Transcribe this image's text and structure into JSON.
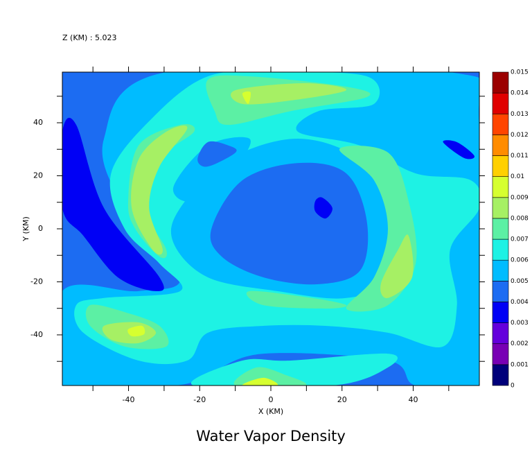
{
  "chart_data": {
    "type": "contourf",
    "title": "Water Vapor Density",
    "subtitle": "Z (KM) : 5.023",
    "x_label": "X (KM)",
    "y_label": "Y (KM)",
    "xlim": [
      -58.6,
      58.6
    ],
    "ylim": [
      -59.1,
      59.1
    ],
    "xticks": [
      -40,
      -20,
      0,
      20,
      40
    ],
    "yticks": [
      -40,
      -20,
      0,
      20,
      40
    ],
    "xminor_ticks": [
      -50,
      -30,
      -10,
      10,
      30,
      50
    ],
    "yminor_ticks": [
      -50,
      -30,
      -10,
      10,
      30,
      50
    ],
    "background_level": 0.004,
    "levels": [
      0,
      0.001,
      0.002,
      0.003,
      0.004,
      0.005,
      0.006,
      0.007,
      0.008,
      0.009,
      0.01,
      0.011,
      0.012,
      0.013,
      0.014,
      0.015
    ],
    "colors": [
      "#00007a",
      "#7800b4",
      "#6400dc",
      "#0000f5",
      "#1c6cf2",
      "#00bcff",
      "#1ef2e4",
      "#5cf0a4",
      "#a6f064",
      "#d6ff30",
      "#ffd000",
      "#ff8c00",
      "#ff4500",
      "#e00000",
      "#9b0000"
    ],
    "contours": [
      {
        "level": 0.005,
        "x": [
          -29.4,
          50.4,
          58.6,
          58.6,
          40.7,
          32.9,
          -2.1,
          -17.7,
          -27.4,
          -58.6,
          -58.6,
          -37.2,
          -25.5,
          -41.1,
          -46.9
        ],
        "y": [
          59.1,
          59.1,
          39.2,
          -59.1,
          -59.1,
          -49.7,
          -47.1,
          -54.9,
          -59.1,
          -59.1,
          -23.5,
          -23.5,
          -18.3,
          7.8,
          34.0
        ]
      },
      {
        "level": 0.003,
        "x": [
          -58.6,
          -54.7,
          -46.9,
          -31.3,
          -32.3,
          -43.0,
          -52.7,
          -58.6
        ],
        "y": [
          36.6,
          39.2,
          7.8,
          -18.3,
          -23.5,
          -18.3,
          -2.6,
          7.8
        ]
      },
      {
        "level": 0.006,
        "x": [
          -44.9,
          -33.3,
          -17.7,
          1.8,
          27.0,
          29.0,
          13.4,
          7.6,
          25.1,
          40.7,
          56.2,
          58.6,
          50.4,
          52.3,
          48.4,
          32.9,
          15.4,
          -2.1,
          -17.7,
          -23.5,
          -37.2,
          -52.7,
          -54.7,
          -46.9,
          -25.5,
          -31.3,
          -41.1
        ],
        "y": [
          20.9,
          41.8,
          57.5,
          59.1,
          57.5,
          47.1,
          44.4,
          36.6,
          31.4,
          20.9,
          18.3,
          7.8,
          -7.8,
          -28.8,
          -44.4,
          -39.2,
          -36.6,
          -36.6,
          -39.2,
          -49.7,
          -49.7,
          -39.2,
          -28.8,
          -26.1,
          -23.5,
          -13.1,
          0
        ]
      },
      {
        "level": 0.006,
        "x": [
          -21.6,
          -8.0,
          5.6,
          32.9,
          32.9,
          17.3
        ],
        "y": [
          -59.1,
          -49.7,
          -49.7,
          -47.1,
          -52.3,
          -59.1
        ]
      },
      {
        "level": 0.005,
        "x": [
          -25.5,
          -11.9,
          7.6,
          25.1,
          32.9,
          32.9,
          21.2,
          1.8,
          -17.7,
          -27.4
        ],
        "y": [
          7.8,
          26.1,
          34.0,
          26.1,
          7.8,
          -18.3,
          -26.1,
          -23.5,
          -18.3,
          -5.2
        ]
      },
      {
        "level": 0.005,
        "x": [
          -27.4,
          -17.7,
          -6.0,
          -9.9,
          -21.6
        ],
        "y": [
          15.7,
          31.4,
          34.0,
          23.5,
          10.5
        ]
      },
      {
        "level": 0.004,
        "x": [
          -20.6,
          -17.7,
          -11.9,
          -9.9,
          -17.7
        ],
        "y": [
          26.1,
          32.7,
          31.4,
          28.8,
          23.5
        ]
      },
      {
        "level": 0.004,
        "x": [
          -16.7,
          -8.0,
          7.6,
          21.2,
          27.0,
          25.1,
          13.4,
          -2.1,
          -13.8
        ],
        "y": [
          0,
          18.3,
          24.8,
          20.9,
          2.6,
          -15.7,
          -20.9,
          -18.3,
          -10.5
        ]
      },
      {
        "level": 0.003,
        "x": [
          12.5,
          14.4,
          17.3,
          15.4,
          12.5
        ],
        "y": [
          10.5,
          11.8,
          7.8,
          3.9,
          6.5
        ]
      },
      {
        "level": 0.003,
        "x": [
          48.4,
          52.3,
          57.2,
          54.3
        ],
        "y": [
          32.7,
          32.7,
          27.5,
          26.7
        ]
      },
      {
        "level": 0.007,
        "x": [
          -40.1,
          -37.2,
          -25.5,
          -21.6,
          -31.3,
          -35.2,
          -29.4,
          -31.3,
          -38.1
        ],
        "y": [
          10.5,
          31.4,
          39.2,
          36.6,
          26.1,
          7.8,
          -7.8,
          -10.5,
          0
        ]
      },
      {
        "level": 0.007,
        "x": [
          19.3,
          32.9,
          38.7,
          40.7,
          32.9,
          21.2,
          29.0,
          32.9,
          29.0
        ],
        "y": [
          30.1,
          28.8,
          10.5,
          -13.1,
          -28.8,
          -30.1,
          -18.3,
          0,
          18.3
        ]
      },
      {
        "level": 0.007,
        "x": [
          -17.7,
          -6.0,
          21.2,
          27.0,
          5.6,
          -11.9,
          -15.8
        ],
        "y": [
          56.2,
          57.5,
          53.6,
          49.7,
          44.4,
          39.2,
          44.4
        ]
      },
      {
        "level": 0.007,
        "x": [
          -50.8,
          -41.1,
          -31.3,
          -29.4,
          -41.1,
          -50.8
        ],
        "y": [
          -28.8,
          -31.4,
          -36.6,
          -44.4,
          -44.4,
          -36.6
        ]
      },
      {
        "level": 0.007,
        "x": [
          -9.9,
          -4.1,
          3.7,
          9.5
        ],
        "y": [
          -59.1,
          -52.3,
          -54.9,
          -59.1
        ]
      },
      {
        "level": 0.007,
        "x": [
          -6.0,
          11.5,
          21.2,
          15.4,
          -2.1
        ],
        "y": [
          -23.5,
          -26.1,
          -28.8,
          -30.1,
          -28.8
        ]
      },
      {
        "level": 0.008,
        "x": [
          -39.1,
          -37.2,
          -29.4,
          -23.5,
          -31.3,
          -34.2,
          -30.4,
          -33.3
        ],
        "y": [
          7.8,
          26.1,
          36.6,
          37.9,
          23.5,
          7.8,
          -7.8,
          -7.8
        ]
      },
      {
        "level": 0.008,
        "x": [
          30.9,
          35.8,
          38.7,
          39.7,
          32.9
        ],
        "y": [
          -20.9,
          -7.8,
          -2.6,
          -18.3,
          -26.1
        ]
      },
      {
        "level": 0.008,
        "x": [
          -9.9,
          9.5,
          21.2,
          5.6,
          -8.0
        ],
        "y": [
          52.3,
          54.9,
          52.3,
          48.4,
          47.1
        ]
      },
      {
        "level": 0.008,
        "x": [
          -46.9,
          -37.2,
          -32.3,
          -37.2,
          -44.9
        ],
        "y": [
          -36.6,
          -35.3,
          -39.2,
          -43.1,
          -41.8
        ]
      },
      {
        "level": 0.009,
        "x": [
          -40.1,
          -36.2,
          -35.6,
          -39.1
        ],
        "y": [
          -37.9,
          -36.6,
          -39.7,
          -40.5
        ]
      },
      {
        "level": 0.009,
        "x": [
          -8.0,
          -5.7,
          -6.4
        ],
        "y": [
          51.0,
          51.5,
          47.1
        ]
      },
      {
        "level": 0.009,
        "x": [
          -8.0,
          -2.1,
          1.8
        ],
        "y": [
          -59.1,
          -56.2,
          -59.1
        ]
      }
    ]
  }
}
